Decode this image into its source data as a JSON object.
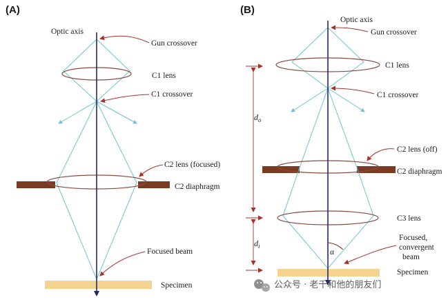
{
  "panels": {
    "a": {
      "panel_label": "(A)",
      "optic_axis": "Optic axis",
      "gun_crossover": "Gun crossover",
      "c1_lens": "C1 lens",
      "c1_crossover": "C1 crossover",
      "c2_lens": "C2 lens (focused)",
      "c2_diaphragm": "C2 diaphragm",
      "focused_beam": "Focused beam",
      "specimen": "Specimen"
    },
    "b": {
      "panel_label": "(B)",
      "optic_axis": "Optic axis",
      "gun_crossover": "Gun crossover",
      "c1_lens": "C1 lens",
      "c1_crossover": "C1 crossover",
      "c2_lens": "C2 lens (off)",
      "c2_diaphragm": "C2 diaphragm",
      "c3_lens": "C3 lens",
      "focused_convergent_line1": "Focused,",
      "focused_convergent_line2": "convergent",
      "focused_convergent_line3": "beam",
      "specimen": "Specimen",
      "do_symbol": "d",
      "do_subscript": "o",
      "di_symbol": "d",
      "di_subscript": "i",
      "alpha": "α"
    }
  },
  "watermark": {
    "icon": "wechat-icon",
    "text": "公众号 · 老千和他的朋友们"
  },
  "colors": {
    "optic_axis": "#1f2a6e",
    "beam_rays": "#6cc3cf",
    "lens_outline": "#8a4a3c",
    "pointer_arrows": "#a8302a",
    "diaphragm": "#7a3b22",
    "specimen": "#f4d28f"
  }
}
